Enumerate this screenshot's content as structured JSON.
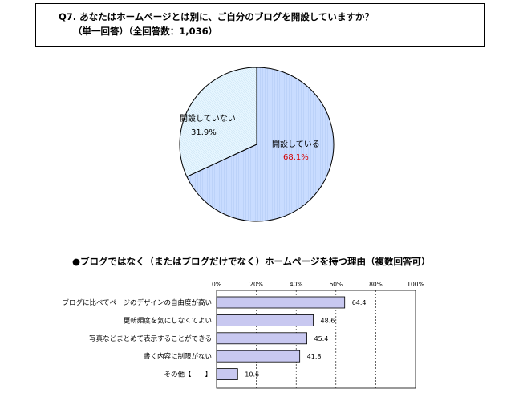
{
  "question": {
    "line1": "Q7. あなたはホームページとは別に、ご自分のブログを開設していますか？",
    "line2": "（単一回答）（全回答数：1,036）"
  },
  "chart_data": [
    {
      "type": "pie",
      "slices": [
        {
          "label": "開設している",
          "value": 68.1,
          "value_label": "68.1%",
          "color": "#c9dcff"
        },
        {
          "label": "開設していない",
          "value": 31.9,
          "value_label": "31.9%",
          "color": "#e6f6ff"
        }
      ]
    },
    {
      "type": "bar",
      "orientation": "horizontal",
      "title": "●ブログではなく（またはブログだけでなく）ホームページを持つ理由（複数回答可）",
      "xlim": [
        0,
        100
      ],
      "ticks": [
        "0%",
        "20%",
        "40%",
        "60%",
        "80%",
        "100%"
      ],
      "categories": [
        "ブログに比べてページのデザインの自由度が高い",
        "更新頻度を気にしなくてよい",
        "写真などまとめて表示することができる",
        "書く内容に制限がない",
        "その他【　　】"
      ],
      "values": [
        64.4,
        48.6,
        45.4,
        41.8,
        10.6
      ],
      "value_labels": [
        "64.4",
        "48.6",
        "45.4",
        "41.8",
        "10.6"
      ],
      "bar_color": "#c8c8f0",
      "grid": true
    }
  ]
}
